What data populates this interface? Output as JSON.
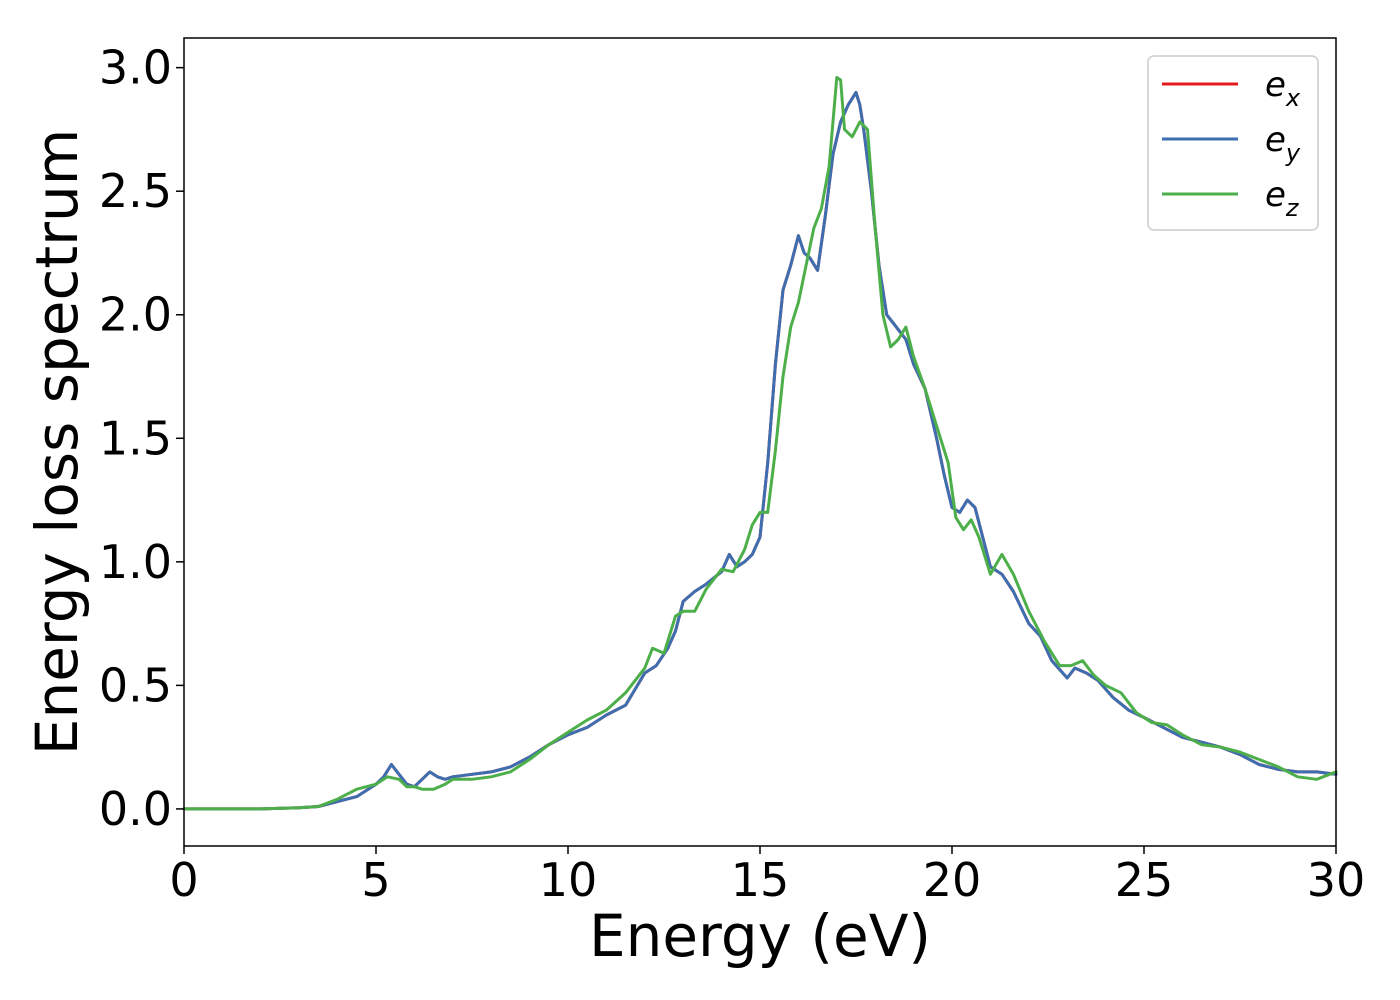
{
  "chart_data": {
    "type": "line",
    "title": "",
    "xlabel": "Energy (eV)",
    "ylabel": "Energy loss spectrum",
    "xlim": [
      0,
      30
    ],
    "ylim": [
      -0.15,
      3.12
    ],
    "xticks": [
      0,
      5,
      10,
      15,
      20,
      25,
      30
    ],
    "yticks": [
      0.0,
      0.5,
      1.0,
      1.5,
      2.0,
      2.5,
      3.0
    ],
    "xtick_labels": [
      "0",
      "5",
      "10",
      "15",
      "20",
      "25",
      "30"
    ],
    "ytick_labels": [
      "0.0",
      "0.5",
      "1.0",
      "1.5",
      "2.0",
      "2.5",
      "3.0"
    ],
    "grid": false,
    "legend_position": "top-right",
    "series": [
      {
        "name": "e_x",
        "legend_base": "e",
        "legend_sub": "x",
        "color": "#e41a1c",
        "x": [
          0,
          1,
          2,
          3,
          3.5,
          4,
          4.5,
          5,
          5.2,
          5.4,
          5.6,
          5.8,
          6.0,
          6.2,
          6.4,
          6.6,
          6.8,
          7.0,
          7.5,
          8,
          8.5,
          9,
          9.5,
          10,
          10.5,
          11,
          11.5,
          12,
          12.3,
          12.6,
          12.8,
          13.0,
          13.3,
          13.6,
          14.0,
          14.2,
          14.4,
          14.6,
          14.8,
          15.0,
          15.2,
          15.4,
          15.6,
          15.8,
          16.0,
          16.15,
          16.3,
          16.5,
          16.7,
          16.9,
          17.1,
          17.3,
          17.5,
          17.6,
          17.7,
          17.9,
          18.1,
          18.3,
          18.5,
          18.8,
          19.0,
          19.3,
          19.6,
          19.8,
          20.0,
          20.2,
          20.4,
          20.6,
          20.8,
          21.0,
          21.3,
          21.6,
          22.0,
          22.3,
          22.6,
          23.0,
          23.2,
          23.5,
          23.8,
          24.2,
          24.6,
          25.0,
          25.5,
          26.0,
          26.5,
          27.0,
          27.5,
          28.0,
          28.5,
          29.0,
          29.5,
          30.0
        ],
        "y": [
          0.0,
          0.0,
          0.0,
          0.005,
          0.01,
          0.03,
          0.05,
          0.1,
          0.13,
          0.18,
          0.14,
          0.1,
          0.09,
          0.12,
          0.15,
          0.13,
          0.12,
          0.13,
          0.14,
          0.15,
          0.17,
          0.21,
          0.26,
          0.3,
          0.33,
          0.38,
          0.42,
          0.55,
          0.58,
          0.65,
          0.72,
          0.84,
          0.88,
          0.91,
          0.96,
          1.03,
          0.98,
          1.0,
          1.03,
          1.1,
          1.4,
          1.8,
          2.1,
          2.2,
          2.32,
          2.25,
          2.23,
          2.18,
          2.4,
          2.65,
          2.78,
          2.85,
          2.9,
          2.85,
          2.75,
          2.5,
          2.2,
          2.0,
          1.96,
          1.9,
          1.8,
          1.7,
          1.5,
          1.35,
          1.22,
          1.2,
          1.25,
          1.22,
          1.1,
          0.98,
          0.95,
          0.88,
          0.75,
          0.7,
          0.6,
          0.53,
          0.57,
          0.55,
          0.52,
          0.45,
          0.4,
          0.37,
          0.33,
          0.29,
          0.27,
          0.25,
          0.22,
          0.18,
          0.16,
          0.15,
          0.15,
          0.14
        ]
      },
      {
        "name": "e_y",
        "legend_base": "e",
        "legend_sub": "y",
        "color": "#3d6fb0",
        "x": [
          0,
          1,
          2,
          3,
          3.5,
          4,
          4.5,
          5,
          5.2,
          5.4,
          5.6,
          5.8,
          6.0,
          6.2,
          6.4,
          6.6,
          6.8,
          7.0,
          7.5,
          8,
          8.5,
          9,
          9.5,
          10,
          10.5,
          11,
          11.5,
          12,
          12.3,
          12.6,
          12.8,
          13.0,
          13.3,
          13.6,
          14.0,
          14.2,
          14.4,
          14.6,
          14.8,
          15.0,
          15.2,
          15.4,
          15.6,
          15.8,
          16.0,
          16.15,
          16.3,
          16.5,
          16.7,
          16.9,
          17.1,
          17.3,
          17.5,
          17.6,
          17.7,
          17.9,
          18.1,
          18.3,
          18.5,
          18.8,
          19.0,
          19.3,
          19.6,
          19.8,
          20.0,
          20.2,
          20.4,
          20.6,
          20.8,
          21.0,
          21.3,
          21.6,
          22.0,
          22.3,
          22.6,
          23.0,
          23.2,
          23.5,
          23.8,
          24.2,
          24.6,
          25.0,
          25.5,
          26.0,
          26.5,
          27.0,
          27.5,
          28.0,
          28.5,
          29.0,
          29.5,
          30.0
        ],
        "y": [
          0.0,
          0.0,
          0.0,
          0.005,
          0.01,
          0.03,
          0.05,
          0.1,
          0.13,
          0.18,
          0.14,
          0.1,
          0.09,
          0.12,
          0.15,
          0.13,
          0.12,
          0.13,
          0.14,
          0.15,
          0.17,
          0.21,
          0.26,
          0.3,
          0.33,
          0.38,
          0.42,
          0.55,
          0.58,
          0.65,
          0.72,
          0.84,
          0.88,
          0.91,
          0.96,
          1.03,
          0.98,
          1.0,
          1.03,
          1.1,
          1.4,
          1.8,
          2.1,
          2.2,
          2.32,
          2.25,
          2.23,
          2.18,
          2.4,
          2.65,
          2.78,
          2.85,
          2.9,
          2.85,
          2.75,
          2.5,
          2.2,
          2.0,
          1.96,
          1.9,
          1.8,
          1.7,
          1.5,
          1.35,
          1.22,
          1.2,
          1.25,
          1.22,
          1.1,
          0.98,
          0.95,
          0.88,
          0.75,
          0.7,
          0.6,
          0.53,
          0.57,
          0.55,
          0.52,
          0.45,
          0.4,
          0.37,
          0.33,
          0.29,
          0.27,
          0.25,
          0.22,
          0.18,
          0.16,
          0.15,
          0.15,
          0.14
        ]
      },
      {
        "name": "e_z",
        "legend_base": "e",
        "legend_sub": "z",
        "color": "#4daf4a",
        "x": [
          0,
          1,
          2,
          3,
          3.5,
          4,
          4.5,
          5,
          5.3,
          5.6,
          5.8,
          6.0,
          6.2,
          6.5,
          6.8,
          7.0,
          7.5,
          8,
          8.5,
          9,
          9.5,
          10,
          10.5,
          11,
          11.5,
          12,
          12.2,
          12.5,
          12.8,
          13.0,
          13.3,
          13.6,
          14.0,
          14.3,
          14.6,
          14.8,
          15.0,
          15.2,
          15.4,
          15.6,
          15.8,
          16.0,
          16.2,
          16.4,
          16.6,
          16.8,
          17.0,
          17.1,
          17.2,
          17.4,
          17.6,
          17.8,
          18.0,
          18.2,
          18.4,
          18.6,
          18.8,
          19.0,
          19.3,
          19.6,
          19.9,
          20.1,
          20.3,
          20.5,
          20.7,
          21.0,
          21.3,
          21.6,
          22.0,
          22.4,
          22.8,
          23.1,
          23.4,
          23.7,
          24.0,
          24.4,
          24.8,
          25.2,
          25.6,
          26.0,
          26.5,
          27.0,
          27.5,
          28.0,
          28.5,
          29.0,
          29.5,
          30.0
        ],
        "y": [
          0.0,
          0.0,
          0.0,
          0.005,
          0.01,
          0.04,
          0.08,
          0.1,
          0.13,
          0.12,
          0.09,
          0.09,
          0.08,
          0.08,
          0.1,
          0.12,
          0.12,
          0.13,
          0.15,
          0.2,
          0.26,
          0.31,
          0.36,
          0.4,
          0.47,
          0.57,
          0.65,
          0.63,
          0.78,
          0.8,
          0.8,
          0.89,
          0.97,
          0.96,
          1.05,
          1.15,
          1.2,
          1.2,
          1.45,
          1.75,
          1.95,
          2.05,
          2.2,
          2.35,
          2.43,
          2.6,
          2.96,
          2.95,
          2.75,
          2.72,
          2.78,
          2.75,
          2.35,
          2.0,
          1.87,
          1.9,
          1.95,
          1.83,
          1.7,
          1.55,
          1.4,
          1.18,
          1.13,
          1.17,
          1.1,
          0.95,
          1.03,
          0.95,
          0.8,
          0.68,
          0.58,
          0.58,
          0.6,
          0.54,
          0.5,
          0.47,
          0.39,
          0.35,
          0.34,
          0.3,
          0.26,
          0.25,
          0.23,
          0.2,
          0.17,
          0.13,
          0.12,
          0.15
        ]
      }
    ]
  }
}
